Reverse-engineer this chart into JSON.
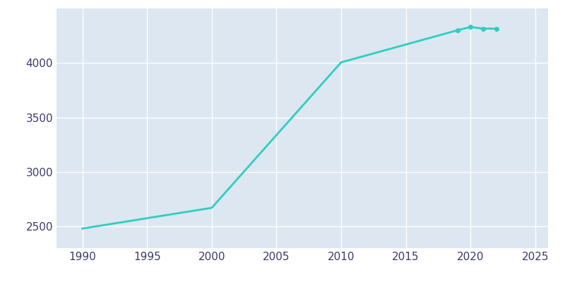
{
  "years": [
    1990,
    2000,
    2010,
    2019,
    2020,
    2021,
    2022
  ],
  "population": [
    2480,
    2670,
    4005,
    4300,
    4330,
    4315,
    4315
  ],
  "line_color": "#2dcfc0",
  "marker_years": [
    2019,
    2020,
    2021,
    2022
  ],
  "plot_background_color": "#dce7f1",
  "fig_background": "#ffffff",
  "grid_color": "#ffffff",
  "tick_color": "#3a3a6e",
  "xlim": [
    1988,
    2026
  ],
  "ylim": [
    2300,
    4500
  ],
  "xticks": [
    1990,
    1995,
    2000,
    2005,
    2010,
    2015,
    2020,
    2025
  ],
  "yticks": [
    2500,
    3000,
    3500,
    4000
  ]
}
